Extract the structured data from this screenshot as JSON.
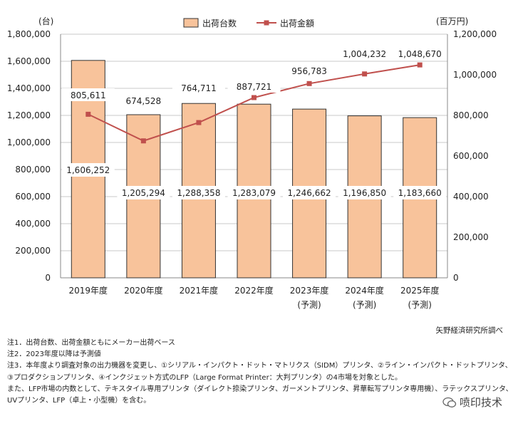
{
  "chart_data": {
    "type": "bar",
    "categories": [
      "2019年度",
      "2020年度",
      "2021年度",
      "2022年度",
      "2023年度",
      "2024年度",
      "2025年度"
    ],
    "category_notes": [
      "",
      "",
      "",
      "",
      "(予測)",
      "(予測)",
      "(予測)"
    ],
    "series": [
      {
        "name": "出荷台数",
        "type": "bar",
        "axis": "left",
        "color": "#f8c39b",
        "values": [
          1606252,
          1205294,
          1288358,
          1283079,
          1246662,
          1196850,
          1183660
        ],
        "labels": [
          "1,606,252",
          "1,205,294",
          "1,288,358",
          "1,283,079",
          "1,246,662",
          "1,196,850",
          "1,183,660"
        ]
      },
      {
        "name": "出荷金額",
        "type": "line",
        "axis": "right",
        "color": "#c0504d",
        "values": [
          805611,
          674528,
          764711,
          887721,
          956783,
          1004232,
          1048670
        ],
        "labels": [
          "805,611",
          "674,528",
          "764,711",
          "887,721",
          "956,783",
          "1,004,232",
          "1,048,670"
        ]
      }
    ],
    "left_axis": {
      "unit": "(台)",
      "ylim": [
        0,
        1800000
      ],
      "ticks": [
        0,
        200000,
        400000,
        600000,
        800000,
        1000000,
        1200000,
        1400000,
        1600000,
        1800000
      ],
      "tick_labels": [
        "0",
        "200,000",
        "400,000",
        "600,000",
        "800,000",
        "1,000,000",
        "1,200,000",
        "1,400,000",
        "1,600,000",
        "1,800,000"
      ]
    },
    "right_axis": {
      "unit": "(百万円)",
      "ylim": [
        0,
        1200000
      ],
      "ticks": [
        0,
        200000,
        400000,
        600000,
        800000,
        1000000,
        1200000
      ],
      "tick_labels": [
        "0",
        "200,000",
        "400,000",
        "600,000",
        "800,000",
        "1,000,000",
        "1,200,000"
      ]
    },
    "grid": true,
    "legend": "top-center"
  },
  "source": "矢野経済研究所調べ",
  "notes": [
    "注1．出荷台数、出荷金額ともにメーカー出荷ベース",
    "注2．2023年度以降は予測値",
    "注3．本年度より調査対象の出力機器を変更し、①シリアル・インパクト・ドット・マトリクス（SIDM）プリンタ、②ライン・インパクト・ドットプリンタ、",
    "③プロダクションプリンタ、④インクジェット方式のLFP（Large Format Printer：大判プリンタ）の4市場を対象とした。",
    "また、LFP市場の内数として、テキスタイル専用プリンタ（ダイレクト捺染プリンタ、ガーメントプリンタ、昇華転写プリンタ専用機）、ラテックスプリンタ、",
    "UVプリンタ、LFP（卓上・小型機）を含む。"
  ],
  "watermark": "喷印技术"
}
